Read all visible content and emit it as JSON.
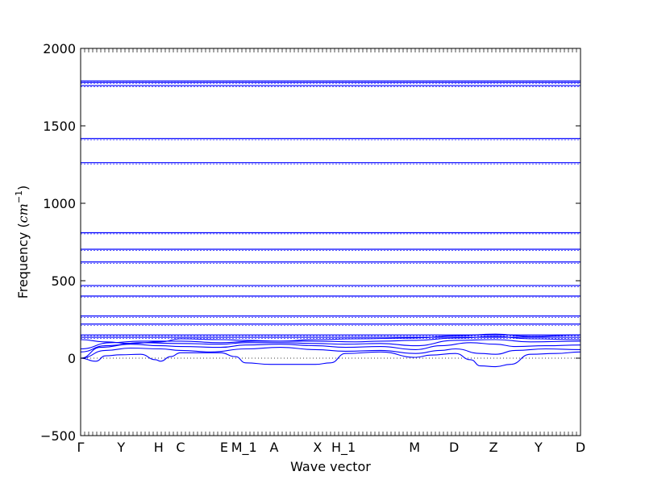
{
  "chart_data": {
    "type": "line",
    "title": "",
    "xlabel": "Wave vector",
    "ylabel": "Frequency (cm⁻¹)",
    "ylabel_prefix": "Frequency (",
    "ylabel_unit": "cm",
    "ylabel_exp": "−1",
    "ylabel_suffix": ")",
    "ylim": [
      -500,
      2000
    ],
    "yticks": [
      -500,
      0,
      500,
      1000,
      1500,
      2000
    ],
    "ytick_labels": [
      "−500",
      "0",
      "500",
      "1000",
      "1500",
      "2000"
    ],
    "grid": false,
    "line_color": "#0000ff",
    "zero_line_style": "dotted",
    "high_symmetry_points": [
      {
        "label": "Γ",
        "pos": 0.0
      },
      {
        "label": "Y",
        "pos": 0.081
      },
      {
        "label": "H",
        "pos": 0.156
      },
      {
        "label": "C",
        "pos": 0.2
      },
      {
        "label": "E",
        "pos": 0.287
      },
      {
        "label": "M_1",
        "pos": 0.327
      },
      {
        "label": "A",
        "pos": 0.387
      },
      {
        "label": "X",
        "pos": 0.474
      },
      {
        "label": "H_1",
        "pos": 0.526
      },
      {
        "label": "M",
        "pos": 0.668
      },
      {
        "label": "D",
        "pos": 0.747
      },
      {
        "label": "Z",
        "pos": 0.826
      },
      {
        "label": "Y",
        "pos": 0.916
      },
      {
        "label": "D",
        "pos": 1.0
      }
    ],
    "flat_bands": [
      1790,
      1780,
      1760,
      1418,
      1262,
      810,
      703,
      621,
      469,
      401,
      272,
      220,
      150,
      135
    ],
    "low_bands": [
      {
        "name": "",
        "points": [
          [
            0,
            0
          ],
          [
            0.03,
            -20
          ],
          [
            0.05,
            15
          ],
          [
            0.08,
            22
          ],
          [
            0.12,
            25
          ],
          [
            0.15,
            -10
          ],
          [
            0.16,
            -20
          ],
          [
            0.18,
            10
          ],
          [
            0.2,
            35
          ],
          [
            0.28,
            35
          ],
          [
            0.31,
            10
          ],
          [
            0.33,
            -30
          ],
          [
            0.38,
            -40
          ],
          [
            0.47,
            -40
          ],
          [
            0.5,
            -30
          ],
          [
            0.53,
            30
          ],
          [
            0.6,
            40
          ],
          [
            0.67,
            5
          ],
          [
            0.7,
            20
          ],
          [
            0.75,
            30
          ],
          [
            0.78,
            -10
          ],
          [
            0.8,
            -50
          ],
          [
            0.83,
            -55
          ],
          [
            0.86,
            -40
          ],
          [
            0.9,
            25
          ],
          [
            0.95,
            30
          ],
          [
            1.0,
            40
          ]
        ]
      },
      {
        "name": "",
        "points": [
          [
            0,
            0
          ],
          [
            0.05,
            50
          ],
          [
            0.1,
            65
          ],
          [
            0.16,
            60
          ],
          [
            0.2,
            50
          ],
          [
            0.26,
            40
          ],
          [
            0.33,
            60
          ],
          [
            0.4,
            70
          ],
          [
            0.47,
            55
          ],
          [
            0.53,
            45
          ],
          [
            0.6,
            50
          ],
          [
            0.67,
            30
          ],
          [
            0.72,
            50
          ],
          [
            0.75,
            60
          ],
          [
            0.8,
            30
          ],
          [
            0.83,
            25
          ],
          [
            0.87,
            50
          ],
          [
            0.93,
            60
          ],
          [
            1.0,
            55
          ]
        ]
      },
      {
        "name": "",
        "points": [
          [
            0,
            0
          ],
          [
            0.04,
            70
          ],
          [
            0.1,
            90
          ],
          [
            0.16,
            80
          ],
          [
            0.2,
            75
          ],
          [
            0.28,
            70
          ],
          [
            0.33,
            85
          ],
          [
            0.4,
            90
          ],
          [
            0.47,
            80
          ],
          [
            0.53,
            70
          ],
          [
            0.6,
            75
          ],
          [
            0.67,
            55
          ],
          [
            0.72,
            80
          ],
          [
            0.78,
            100
          ],
          [
            0.83,
            90
          ],
          [
            0.87,
            75
          ],
          [
            0.93,
            80
          ],
          [
            1.0,
            85
          ]
        ]
      },
      {
        "name": "",
        "points": [
          [
            0,
            40
          ],
          [
            0.05,
            80
          ],
          [
            0.12,
            100
          ],
          [
            0.2,
            95
          ],
          [
            0.28,
            90
          ],
          [
            0.33,
            100
          ],
          [
            0.4,
            100
          ],
          [
            0.47,
            95
          ],
          [
            0.53,
            90
          ],
          [
            0.6,
            95
          ],
          [
            0.67,
            80
          ],
          [
            0.75,
            115
          ],
          [
            0.83,
            120
          ],
          [
            0.9,
            105
          ],
          [
            1.0,
            110
          ]
        ]
      },
      {
        "name": "",
        "points": [
          [
            0,
            60
          ],
          [
            0.06,
            100
          ],
          [
            0.12,
            110
          ],
          [
            0.2,
            110
          ],
          [
            0.28,
            100
          ],
          [
            0.35,
            110
          ],
          [
            0.47,
            110
          ],
          [
            0.55,
            105
          ],
          [
            0.6,
            110
          ],
          [
            0.67,
            115
          ],
          [
            0.75,
            130
          ],
          [
            0.83,
            140
          ],
          [
            0.9,
            125
          ],
          [
            1.0,
            120
          ]
        ]
      },
      {
        "name": "",
        "points": [
          [
            0,
            120
          ],
          [
            0.05,
            105
          ],
          [
            0.1,
            95
          ],
          [
            0.16,
            105
          ],
          [
            0.2,
            125
          ],
          [
            0.28,
            120
          ],
          [
            0.33,
            115
          ],
          [
            0.4,
            110
          ],
          [
            0.47,
            120
          ],
          [
            0.55,
            125
          ],
          [
            0.67,
            130
          ],
          [
            0.75,
            145
          ],
          [
            0.83,
            155
          ],
          [
            0.9,
            140
          ],
          [
            1.0,
            150
          ]
        ]
      }
    ]
  }
}
